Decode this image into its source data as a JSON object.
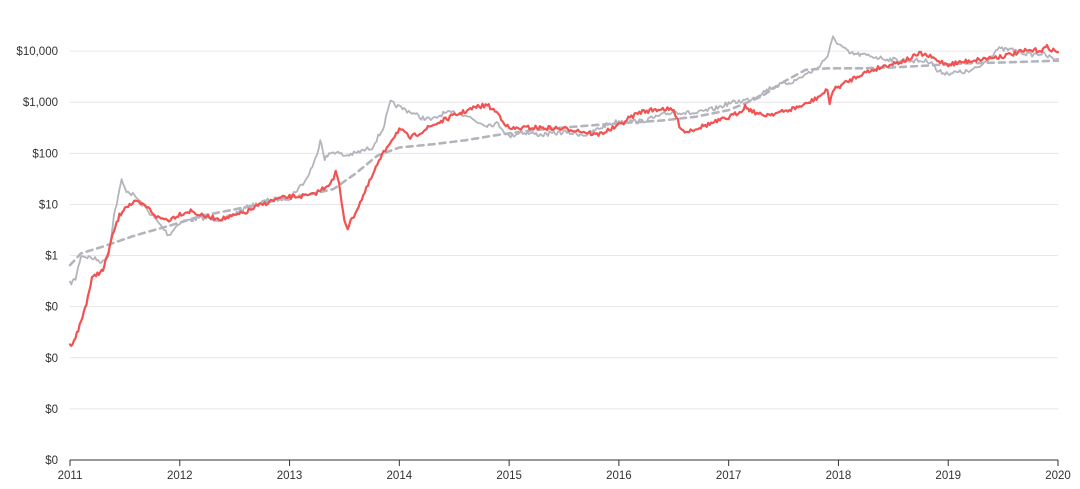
{
  "chart_data": {
    "type": "line",
    "title": "",
    "xlabel": "",
    "ylabel": "",
    "scale": "log",
    "grid": "horizontal",
    "legend": "none",
    "xlim": [
      2011,
      2020
    ],
    "ylim": [
      0.0001,
      100000
    ],
    "x_ticks": [
      {
        "value": 2011,
        "label": "2011"
      },
      {
        "value": 2012,
        "label": "2012"
      },
      {
        "value": 2013,
        "label": "2013"
      },
      {
        "value": 2014,
        "label": "2014"
      },
      {
        "value": 2015,
        "label": "2015"
      },
      {
        "value": 2016,
        "label": "2016"
      },
      {
        "value": 2017,
        "label": "2017"
      },
      {
        "value": 2018,
        "label": "2018"
      },
      {
        "value": 2019,
        "label": "2019"
      },
      {
        "value": 2020,
        "label": "2020"
      }
    ],
    "y_ticks": [
      {
        "value": 10000,
        "label": "$10,000"
      },
      {
        "value": 1000,
        "label": "$1,000"
      },
      {
        "value": 100,
        "label": "$100"
      },
      {
        "value": 10,
        "label": "$10"
      },
      {
        "value": 1,
        "label": "$1"
      },
      {
        "value": 0.1,
        "label": "$0"
      },
      {
        "value": 0.01,
        "label": "$0"
      },
      {
        "value": 0.001,
        "label": "$0"
      }
    ],
    "series": [
      {
        "style": "dashed",
        "color": "#b4b4bc",
        "points": [
          [
            2011.0,
            0.65
          ],
          [
            2011.1,
            1.1
          ],
          [
            2011.3,
            1.5
          ],
          [
            2011.6,
            2.5
          ],
          [
            2011.9,
            3.8
          ],
          [
            2012.2,
            6
          ],
          [
            2012.5,
            8
          ],
          [
            2012.8,
            11
          ],
          [
            2013.0,
            14
          ],
          [
            2013.2,
            16
          ],
          [
            2013.4,
            20
          ],
          [
            2013.6,
            40
          ],
          [
            2013.8,
            90
          ],
          [
            2014.0,
            130
          ],
          [
            2014.3,
            150
          ],
          [
            2014.6,
            180
          ],
          [
            2014.9,
            230
          ],
          [
            2015.2,
            280
          ],
          [
            2015.5,
            320
          ],
          [
            2015.8,
            360
          ],
          [
            2016.1,
            400
          ],
          [
            2016.4,
            440
          ],
          [
            2016.7,
            520
          ],
          [
            2017.0,
            700
          ],
          [
            2017.3,
            1300
          ],
          [
            2017.5,
            2500
          ],
          [
            2017.7,
            4300
          ],
          [
            2017.9,
            4600
          ],
          [
            2018.2,
            4600
          ],
          [
            2018.5,
            4800
          ],
          [
            2018.8,
            5200
          ],
          [
            2019.1,
            5700
          ],
          [
            2019.5,
            6000
          ],
          [
            2019.8,
            6300
          ],
          [
            2020.0,
            6500
          ]
        ]
      },
      {
        "style": "solid",
        "color": "#b4b4bc",
        "points": [
          [
            2011.0,
            0.28
          ],
          [
            2011.05,
            0.35
          ],
          [
            2011.1,
            1.0
          ],
          [
            2011.2,
            0.9
          ],
          [
            2011.3,
            0.75
          ],
          [
            2011.35,
            1.0
          ],
          [
            2011.4,
            6
          ],
          [
            2011.45,
            18
          ],
          [
            2011.47,
            30
          ],
          [
            2011.5,
            20
          ],
          [
            2011.6,
            14
          ],
          [
            2011.7,
            8
          ],
          [
            2011.8,
            4.5
          ],
          [
            2011.9,
            2.5
          ],
          [
            2012.0,
            4.5
          ],
          [
            2012.2,
            5.5
          ],
          [
            2012.4,
            5
          ],
          [
            2012.6,
            8.5
          ],
          [
            2012.8,
            12
          ],
          [
            2013.0,
            13.5
          ],
          [
            2013.15,
            30
          ],
          [
            2013.25,
            90
          ],
          [
            2013.28,
            200
          ],
          [
            2013.32,
            80
          ],
          [
            2013.4,
            110
          ],
          [
            2013.5,
            90
          ],
          [
            2013.6,
            100
          ],
          [
            2013.75,
            130
          ],
          [
            2013.85,
            300
          ],
          [
            2013.92,
            1000
          ],
          [
            2014.0,
            800
          ],
          [
            2014.1,
            650
          ],
          [
            2014.2,
            500
          ],
          [
            2014.3,
            450
          ],
          [
            2014.4,
            600
          ],
          [
            2014.5,
            620
          ],
          [
            2014.6,
            580
          ],
          [
            2014.7,
            420
          ],
          [
            2014.8,
            360
          ],
          [
            2014.9,
            380
          ],
          [
            2015.0,
            210
          ],
          [
            2015.1,
            260
          ],
          [
            2015.3,
            230
          ],
          [
            2015.5,
            260
          ],
          [
            2015.7,
            230
          ],
          [
            2015.9,
            370
          ],
          [
            2016.0,
            430
          ],
          [
            2016.2,
            420
          ],
          [
            2016.5,
            650
          ],
          [
            2016.7,
            600
          ],
          [
            2016.9,
            780
          ],
          [
            2017.0,
            950
          ],
          [
            2017.2,
            1150
          ],
          [
            2017.4,
            2000
          ],
          [
            2017.6,
            2600
          ],
          [
            2017.7,
            3500
          ],
          [
            2017.8,
            4500
          ],
          [
            2017.9,
            8000
          ],
          [
            2017.95,
            18000
          ],
          [
            2018.0,
            14000
          ],
          [
            2018.1,
            9000
          ],
          [
            2018.3,
            8000
          ],
          [
            2018.4,
            7200
          ],
          [
            2018.5,
            6800
          ],
          [
            2018.7,
            6500
          ],
          [
            2018.85,
            6300
          ],
          [
            2018.9,
            4000
          ],
          [
            2019.0,
            3700
          ],
          [
            2019.2,
            4000
          ],
          [
            2019.3,
            5200
          ],
          [
            2019.45,
            11000
          ],
          [
            2019.6,
            10500
          ],
          [
            2019.75,
            8500
          ],
          [
            2019.85,
            9000
          ],
          [
            2019.95,
            7200
          ],
          [
            2020.0,
            7100
          ]
        ]
      },
      {
        "style": "solid",
        "color": "#f25252",
        "points": [
          [
            2011.0,
            0.017
          ],
          [
            2011.05,
            0.025
          ],
          [
            2011.1,
            0.05
          ],
          [
            2011.15,
            0.12
          ],
          [
            2011.2,
            0.35
          ],
          [
            2011.25,
            0.45
          ],
          [
            2011.3,
            0.5
          ],
          [
            2011.35,
            1.2
          ],
          [
            2011.4,
            3
          ],
          [
            2011.45,
            6
          ],
          [
            2011.5,
            9
          ],
          [
            2011.6,
            11
          ],
          [
            2011.7,
            9
          ],
          [
            2011.8,
            5.5
          ],
          [
            2011.9,
            5
          ],
          [
            2012.0,
            6.5
          ],
          [
            2012.1,
            7.5
          ],
          [
            2012.2,
            6
          ],
          [
            2012.3,
            5.5
          ],
          [
            2012.4,
            5.3
          ],
          [
            2012.5,
            6
          ],
          [
            2012.6,
            7
          ],
          [
            2012.7,
            9
          ],
          [
            2012.8,
            11
          ],
          [
            2012.9,
            13
          ],
          [
            2013.0,
            14
          ],
          [
            2013.2,
            15
          ],
          [
            2013.3,
            20
          ],
          [
            2013.4,
            30
          ],
          [
            2013.42,
            45
          ],
          [
            2013.45,
            25
          ],
          [
            2013.5,
            5
          ],
          [
            2013.53,
            3.5
          ],
          [
            2013.6,
            7
          ],
          [
            2013.7,
            20
          ],
          [
            2013.8,
            60
          ],
          [
            2013.9,
            150
          ],
          [
            2014.0,
            300
          ],
          [
            2014.1,
            200
          ],
          [
            2014.3,
            350
          ],
          [
            2014.5,
            550
          ],
          [
            2014.7,
            800
          ],
          [
            2014.8,
            880
          ],
          [
            2014.9,
            600
          ],
          [
            2015.0,
            300
          ],
          [
            2015.2,
            320
          ],
          [
            2015.4,
            310
          ],
          [
            2015.6,
            290
          ],
          [
            2015.8,
            230
          ],
          [
            2015.9,
            280
          ],
          [
            2016.0,
            350
          ],
          [
            2016.1,
            500
          ],
          [
            2016.2,
            650
          ],
          [
            2016.4,
            750
          ],
          [
            2016.5,
            680
          ],
          [
            2016.55,
            360
          ],
          [
            2016.6,
            260
          ],
          [
            2016.8,
            360
          ],
          [
            2017.0,
            500
          ],
          [
            2017.1,
            650
          ],
          [
            2017.15,
            830
          ],
          [
            2017.2,
            700
          ],
          [
            2017.3,
            550
          ],
          [
            2017.5,
            650
          ],
          [
            2017.7,
            900
          ],
          [
            2017.8,
            1200
          ],
          [
            2017.9,
            1700
          ],
          [
            2017.92,
            1000
          ],
          [
            2017.95,
            1700
          ],
          [
            2018.0,
            2000
          ],
          [
            2018.2,
            3500
          ],
          [
            2018.4,
            5000
          ],
          [
            2018.6,
            6500
          ],
          [
            2018.75,
            9000
          ],
          [
            2018.85,
            7500
          ],
          [
            2018.9,
            6500
          ],
          [
            2019.0,
            5500
          ],
          [
            2019.2,
            6500
          ],
          [
            2019.5,
            8000
          ],
          [
            2019.7,
            10000
          ],
          [
            2019.85,
            10500
          ],
          [
            2019.9,
            12000
          ],
          [
            2020.0,
            9500
          ]
        ]
      }
    ]
  }
}
